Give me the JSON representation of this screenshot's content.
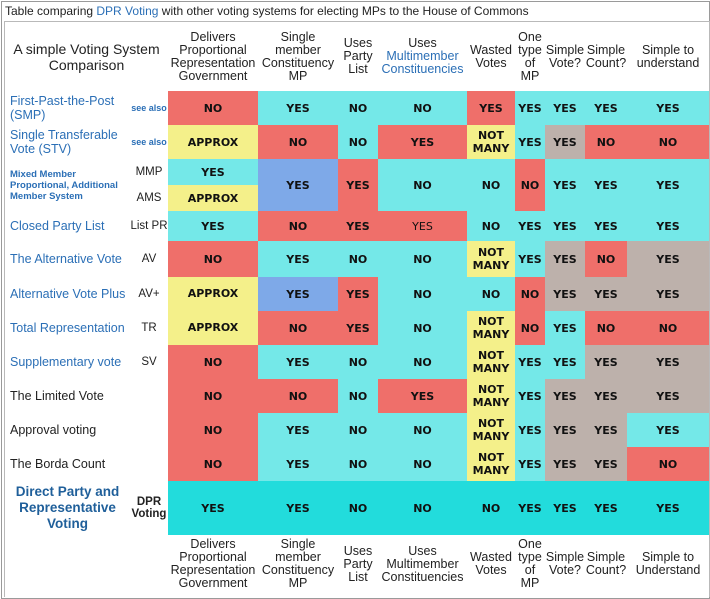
{
  "caption": {
    "before": "Table comparing ",
    "link": "DPR Voting",
    "after": " with other voting systems for electing MPs to the House of Commons"
  },
  "header": {
    "corner": "A simple Voting System Comparison",
    "columns": [
      "Delivers Proportional Representation Government",
      "Single member Constituency MP",
      "Uses Party List",
      "Uses",
      "Wasted Votes",
      "One type of MP",
      "Simple Vote?",
      "Simple Count?",
      "Simple to understand"
    ],
    "col4_link": "Multimember Constituencies"
  },
  "footer": {
    "columns": [
      "Delivers Proportional Representation Government",
      "Single member Constituency MP",
      "Uses Party List",
      "Uses Multimember Constituencies",
      "Wasted Votes",
      "One type of MP",
      "Simple Vote?",
      "Simple Count?",
      "Simple to Understand"
    ]
  },
  "rows": {
    "fptp": {
      "name": "First-Past-the-Post (SMP)",
      "abbr": "see also"
    },
    "stv": {
      "name": "Single Transferable Vote (STV)",
      "abbr": "see also"
    },
    "mmp": {
      "name": "Mixed Member Proportional, Additional Member System",
      "abbr1": "MMP",
      "abbr2": "AMS"
    },
    "cpl": {
      "name": "Closed Party List",
      "abbr": "List PR"
    },
    "av": {
      "name": "The Alternative Vote",
      "abbr": "AV"
    },
    "avplus": {
      "name": "Alternative Vote Plus",
      "abbr": "AV+"
    },
    "tr": {
      "name": "Total Representation",
      "abbr": "TR"
    },
    "sv": {
      "name": "Supplementary vote",
      "abbr": "SV"
    },
    "lv": {
      "name": "The Limited Vote",
      "abbr": ""
    },
    "appr": {
      "name": "Approval voting",
      "abbr": ""
    },
    "borda": {
      "name": "The Borda Count",
      "abbr": ""
    },
    "dpr": {
      "name": "Direct Party and Representative Voting",
      "abbr": "DPR Voting"
    }
  },
  "values": {
    "yes": "YES",
    "no": "NO",
    "approx": "APPROX",
    "not_many": "NOT MANY"
  },
  "colors": {
    "red": "#ef6f6a",
    "cyan": "#74e8e8",
    "yellow": "#f4f08a",
    "blue": "#7ea9e8",
    "grey": "#bdb1ab",
    "teal": "#22dcdc",
    "link": "#2b6fb6"
  }
}
